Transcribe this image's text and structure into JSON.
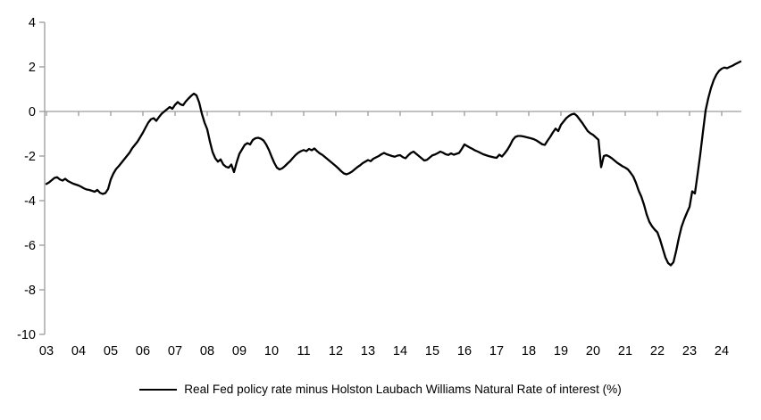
{
  "chart_data": {
    "type": "line",
    "title": "",
    "legend_label": "Real Fed policy rate minus Holston Laubach Williams Natural Rate of interest (%)",
    "legend_position": "bottom-center",
    "x_tick_labels": [
      "03",
      "04",
      "05",
      "06",
      "07",
      "08",
      "09",
      "10",
      "11",
      "12",
      "13",
      "14",
      "15",
      "16",
      "17",
      "18",
      "19",
      "20",
      "21",
      "22",
      "23",
      "24"
    ],
    "y_tick_labels": [
      "4",
      "2",
      "0",
      "-2",
      "-4",
      "-6",
      "-8",
      "-10"
    ],
    "y_ticks": [
      4,
      2,
      0,
      -2,
      -4,
      -6,
      -8,
      -10
    ],
    "ylim": [
      -10,
      4
    ],
    "xlim_years": [
      2003,
      2024.7
    ],
    "grid": "zero-line-only",
    "series": [
      {
        "name": "Real Fed policy rate minus Holston Laubach Williams Natural Rate of interest (%)",
        "color": "#000000",
        "start_year": 2003,
        "points_per_year": 12,
        "values": [
          -3.25,
          -3.18,
          -3.08,
          -2.98,
          -2.95,
          -3.05,
          -3.1,
          -3.02,
          -3.12,
          -3.18,
          -3.24,
          -3.28,
          -3.32,
          -3.38,
          -3.45,
          -3.5,
          -3.52,
          -3.56,
          -3.6,
          -3.52,
          -3.65,
          -3.7,
          -3.66,
          -3.48,
          -3.05,
          -2.78,
          -2.58,
          -2.45,
          -2.3,
          -2.15,
          -2.0,
          -1.85,
          -1.65,
          -1.5,
          -1.35,
          -1.15,
          -0.95,
          -0.72,
          -0.5,
          -0.35,
          -0.3,
          -0.42,
          -0.25,
          -0.1,
          0.0,
          0.1,
          0.2,
          0.12,
          0.3,
          0.42,
          0.32,
          0.28,
          0.45,
          0.58,
          0.7,
          0.8,
          0.72,
          0.4,
          -0.1,
          -0.5,
          -0.8,
          -1.35,
          -1.82,
          -2.1,
          -2.25,
          -2.15,
          -2.38,
          -2.48,
          -2.52,
          -2.38,
          -2.72,
          -2.28,
          -1.9,
          -1.7,
          -1.5,
          -1.42,
          -1.48,
          -1.28,
          -1.2,
          -1.18,
          -1.22,
          -1.3,
          -1.48,
          -1.72,
          -2.02,
          -2.3,
          -2.52,
          -2.6,
          -2.55,
          -2.45,
          -2.33,
          -2.22,
          -2.08,
          -1.95,
          -1.85,
          -1.78,
          -1.73,
          -1.78,
          -1.68,
          -1.74,
          -1.66,
          -1.78,
          -1.88,
          -1.95,
          -2.05,
          -2.15,
          -2.25,
          -2.35,
          -2.45,
          -2.56,
          -2.68,
          -2.78,
          -2.82,
          -2.77,
          -2.7,
          -2.6,
          -2.5,
          -2.42,
          -2.32,
          -2.25,
          -2.18,
          -2.23,
          -2.12,
          -2.06,
          -2.0,
          -1.92,
          -1.86,
          -1.92,
          -1.96,
          -2.0,
          -2.03,
          -1.98,
          -1.96,
          -2.05,
          -2.1,
          -1.97,
          -1.86,
          -1.8,
          -1.9,
          -2.0,
          -2.1,
          -2.2,
          -2.17,
          -2.07,
          -1.97,
          -1.93,
          -1.87,
          -1.8,
          -1.85,
          -1.92,
          -1.95,
          -1.88,
          -1.94,
          -1.9,
          -1.86,
          -1.68,
          -1.48,
          -1.55,
          -1.62,
          -1.68,
          -1.75,
          -1.8,
          -1.86,
          -1.92,
          -1.96,
          -2.0,
          -2.03,
          -2.06,
          -2.08,
          -1.94,
          -2.02,
          -1.88,
          -1.72,
          -1.52,
          -1.28,
          -1.14,
          -1.1,
          -1.1,
          -1.12,
          -1.15,
          -1.18,
          -1.21,
          -1.25,
          -1.31,
          -1.39,
          -1.47,
          -1.5,
          -1.31,
          -1.14,
          -0.94,
          -0.77,
          -0.88,
          -0.6,
          -0.45,
          -0.3,
          -0.2,
          -0.13,
          -0.1,
          -0.2,
          -0.36,
          -0.52,
          -0.7,
          -0.88,
          -0.98,
          -1.05,
          -1.16,
          -1.27,
          -2.5,
          -2.0,
          -1.96,
          -2.02,
          -2.1,
          -2.2,
          -2.3,
          -2.38,
          -2.46,
          -2.52,
          -2.6,
          -2.75,
          -2.92,
          -3.2,
          -3.55,
          -3.82,
          -4.18,
          -4.62,
          -4.95,
          -5.15,
          -5.3,
          -5.42,
          -5.75,
          -6.15,
          -6.55,
          -6.8,
          -6.9,
          -6.76,
          -6.26,
          -5.68,
          -5.18,
          -4.84,
          -4.55,
          -4.28,
          -3.58,
          -3.68,
          -2.82,
          -1.92,
          -0.92,
          0.05,
          0.6,
          1.05,
          1.4,
          1.65,
          1.82,
          1.92,
          1.97,
          1.94,
          2.0,
          2.05,
          2.12,
          2.18,
          2.24
        ]
      }
    ]
  },
  "colors": {
    "background": "#ffffff",
    "series_line": "#000000",
    "axis": "#9c9c9c",
    "tick_text": "#000000"
  }
}
